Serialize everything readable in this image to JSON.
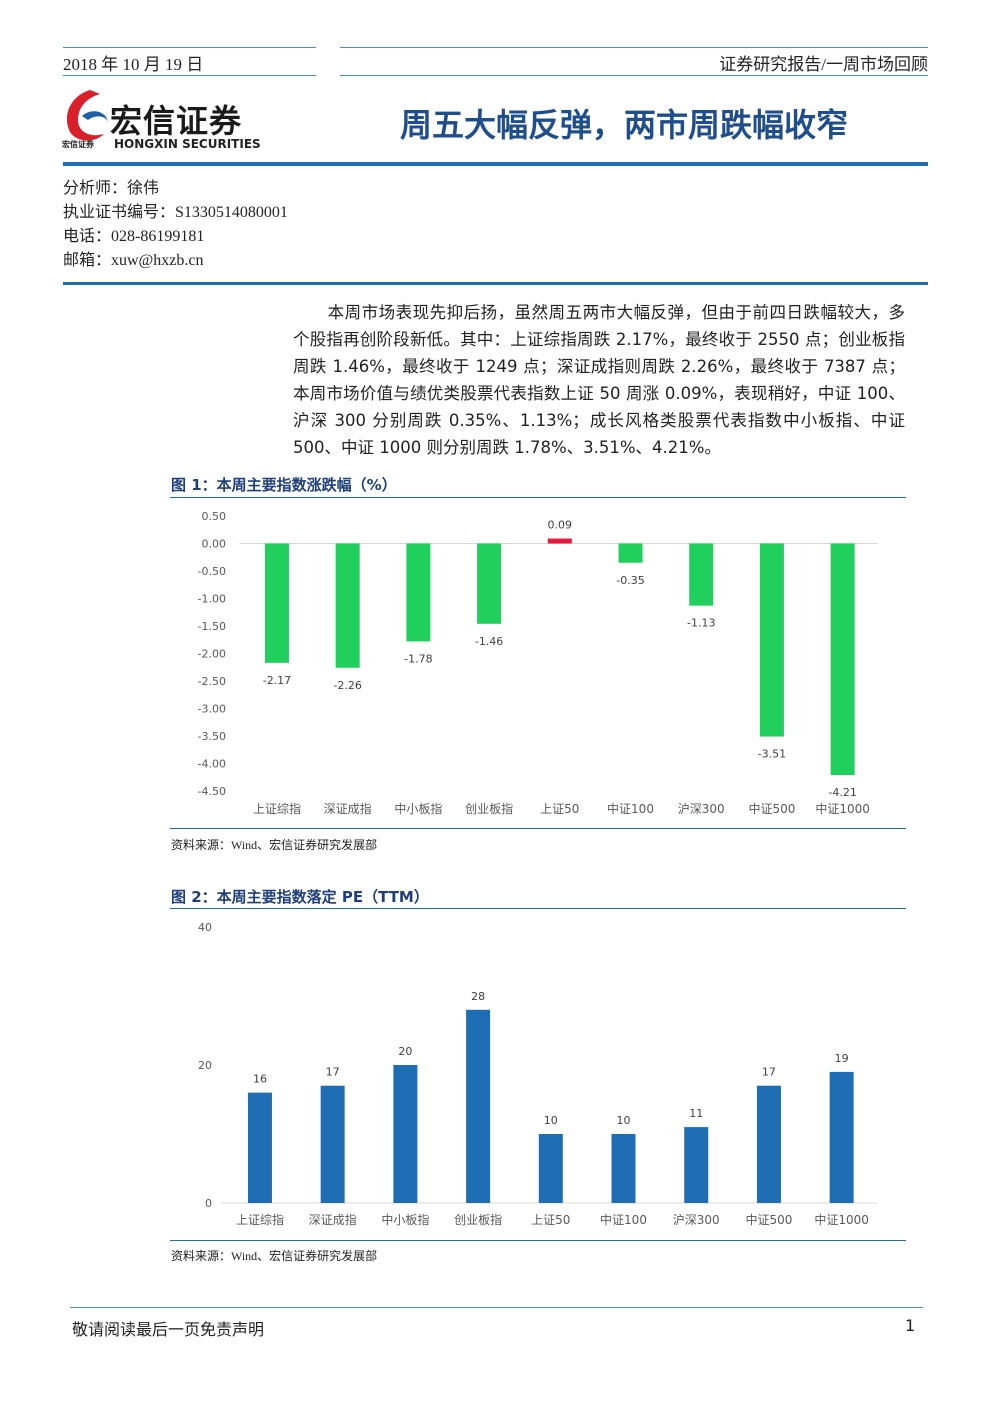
{
  "header": {
    "date": "2018 年 10 月 19 日",
    "category": "证券研究报告/一周市场回顾",
    "logo_cn": "宏信证券",
    "logo_en": "HONGXIN SECURITIES",
    "logo_small": "宏信证券",
    "title": "周五大幅反弹，两市周跌幅收窄"
  },
  "analyst": [
    "分析师：徐伟",
    "执业证书编号：S1330514080001",
    "电话：028-86199181",
    "邮箱：xuw@hxzb.cn"
  ],
  "body": "本周市场表现先抑后扬，虽然周五两市大幅反弹，但由于前四日跌幅较大，多个股指再创阶段新低。其中：上证综指周跌 2.17%，最终收于 2550 点；创业板指周跌 1.46%，最终收于 1249 点；深证成指则周跌 2.26%，最终收于 7387 点；本周市场价值与绩优类股票代表指数上证 50 周涨 0.09%，表现稍好，中证 100、沪深 300 分别周跌 0.35%、1.13%；成长风格类股票代表指数中小板指、中证 500、中证 1000 则分别周跌 1.78%、3.51%、4.21%。",
  "chart_data": [
    {
      "type": "bar",
      "title": "图 1：本周主要指数涨跌幅（%）",
      "source": "资料来源：Wind、宏信证券研究发展部",
      "categories": [
        "上证综指",
        "深证成指",
        "中小板指",
        "创业板指",
        "上证50",
        "中证100",
        "沪深300",
        "中证500",
        "中证1000"
      ],
      "values": [
        -2.17,
        -2.26,
        -1.78,
        -1.46,
        0.09,
        -0.35,
        -1.13,
        -3.51,
        -4.21
      ],
      "colors": [
        "#21d05c",
        "#21d05c",
        "#21d05c",
        "#21d05c",
        "#e8193c",
        "#21d05c",
        "#21d05c",
        "#21d05c",
        "#21d05c"
      ],
      "ylim": [
        -4.5,
        0.5
      ],
      "yticks": [
        {
          "value": 0.5,
          "label": "0.50"
        },
        {
          "value": 0,
          "label": "0.00"
        },
        {
          "value": -0.5,
          "label": "-0.50"
        },
        {
          "value": -1,
          "label": "-1.00"
        },
        {
          "value": -1.5,
          "label": "-1.50"
        },
        {
          "value": -2,
          "label": "-2.00"
        },
        {
          "value": -2.5,
          "label": "-2.50"
        },
        {
          "value": -3,
          "label": "-3.00"
        },
        {
          "value": -3.5,
          "label": "-3.50"
        },
        {
          "value": -4,
          "label": "-4.00"
        },
        {
          "value": -4.5,
          "label": "-4.50"
        }
      ],
      "grid": false
    },
    {
      "type": "bar",
      "title": "图 2：本周主要指数落定 PE（TTM）",
      "source": "资料来源：Wind、宏信证券研究发展部",
      "categories": [
        "上证综指",
        "深证成指",
        "中小板指",
        "创业板指",
        "上证50",
        "中证100",
        "沪深300",
        "中证500",
        "中证1000"
      ],
      "values": [
        16,
        17,
        20,
        28,
        10,
        10,
        11,
        17,
        19
      ],
      "color": "#1f6db5",
      "ylim": [
        0,
        40
      ],
      "yticks": [
        0,
        20,
        40
      ],
      "grid": false
    }
  ],
  "footer": {
    "disclaimer": "敬请阅读最后一页免责声明",
    "page": "1"
  }
}
